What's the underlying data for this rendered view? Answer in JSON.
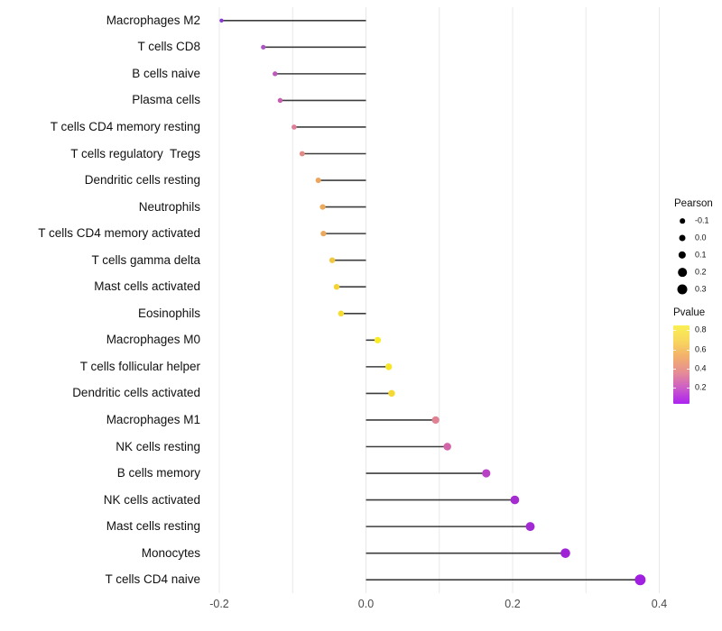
{
  "chart_data": {
    "type": "lollipop",
    "title": "",
    "xlabel": "",
    "ylabel": "",
    "x_axis": {
      "tick_values": [
        -0.2,
        0.0,
        0.2,
        0.4
      ],
      "tick_labels": [
        "-0.2",
        "0.0",
        "0.2",
        "0.4"
      ],
      "gridline_values": [
        -0.2,
        -0.1,
        0.0,
        0.1,
        0.2,
        0.3,
        0.4
      ],
      "range": [
        -0.215,
        0.415
      ]
    },
    "baseline": 0.0,
    "grid_on": true,
    "legend_position": "right",
    "points": [
      {
        "label": "Macrophages M2",
        "pearson": -0.197,
        "color": "#8a35d6"
      },
      {
        "label": "T cells CD8",
        "pearson": -0.14,
        "color": "#ad53c4"
      },
      {
        "label": "B cells naive",
        "pearson": -0.124,
        "color": "#bc59ba"
      },
      {
        "label": "Plasma cells",
        "pearson": -0.117,
        "color": "#c75fb0"
      },
      {
        "label": "T cells CD4 memory resting",
        "pearson": -0.098,
        "color": "#dd7f98"
      },
      {
        "label": "T cells regulatory  Tregs",
        "pearson": -0.087,
        "color": "#e28b85"
      },
      {
        "label": "Dendritic cells resting",
        "pearson": -0.065,
        "color": "#eca660"
      },
      {
        "label": "Neutrophils",
        "pearson": -0.059,
        "color": "#edaa5b"
      },
      {
        "label": "T cells CD4 memory activated",
        "pearson": -0.058,
        "color": "#eca95d"
      },
      {
        "label": "T cells gamma delta",
        "pearson": -0.046,
        "color": "#f2c740"
      },
      {
        "label": "Mast cells activated",
        "pearson": -0.04,
        "color": "#f4d434"
      },
      {
        "label": "Eosinophils",
        "pearson": -0.034,
        "color": "#f6dc2d"
      },
      {
        "label": "Macrophages M0",
        "pearson": 0.016,
        "color": "#f9ec25"
      },
      {
        "label": "T cells follicular helper",
        "pearson": 0.031,
        "color": "#f7e52a"
      },
      {
        "label": "Dendritic cells activated",
        "pearson": 0.035,
        "color": "#f5d832"
      },
      {
        "label": "Macrophages M1",
        "pearson": 0.095,
        "color": "#e18292"
      },
      {
        "label": "NK cells resting",
        "pearson": 0.111,
        "color": "#d264a8"
      },
      {
        "label": "B cells memory",
        "pearson": 0.164,
        "color": "#b841c6"
      },
      {
        "label": "NK cells activated",
        "pearson": 0.203,
        "color": "#a52cd0"
      },
      {
        "label": "Mast cells resting",
        "pearson": 0.224,
        "color": "#a229d3"
      },
      {
        "label": "Monocytes",
        "pearson": 0.272,
        "color": "#9f24d6"
      },
      {
        "label": "T cells CD4 naive",
        "pearson": 0.374,
        "color": "#a01fe0"
      }
    ],
    "legend_pearson": {
      "title": "Pearson",
      "dot_color": "#000000",
      "entries": [
        {
          "label": "-0.1",
          "value": -0.1
        },
        {
          "label": "0.0",
          "value": 0.0
        },
        {
          "label": "0.1",
          "value": 0.1
        },
        {
          "label": "0.2",
          "value": 0.2
        },
        {
          "label": "0.3",
          "value": 0.3
        }
      ]
    },
    "legend_pvalue": {
      "title": "Pvalue",
      "tick_labels": [
        "0.8",
        "0.6",
        "0.4",
        "0.2"
      ],
      "gradient_top_to_bottom": [
        "#faf054",
        "#f8d75e",
        "#f2af6c",
        "#e68d95",
        "#cc5cc8",
        "#ab22f0"
      ]
    },
    "style": {
      "gridline_color": "#e9e9e9",
      "segment_color": "#3d3d3d",
      "axis_text_color": "#4a4a4a",
      "label_text_color": "#111111"
    }
  }
}
